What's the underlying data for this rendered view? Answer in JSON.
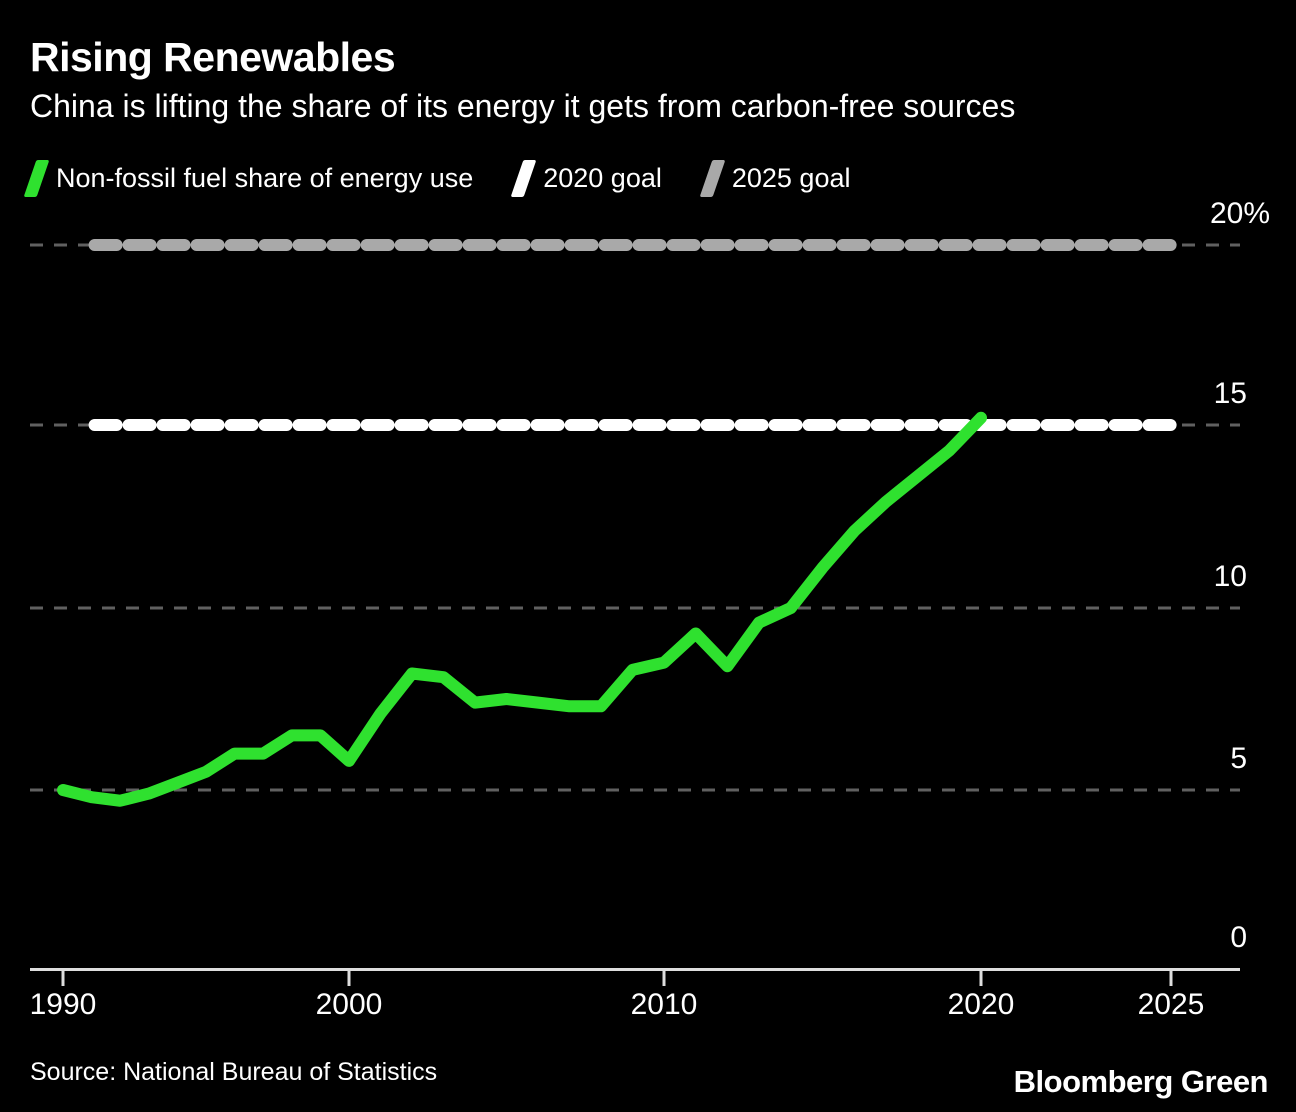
{
  "header": {
    "title": "Rising Renewables",
    "subtitle": "China is lifting the share of its energy it gets from carbon-free sources"
  },
  "legend": [
    {
      "label": "Non-fossil fuel share of energy use",
      "color": "#2fe12f",
      "icon": "slash-icon"
    },
    {
      "label": "2020 goal",
      "color": "#ffffff",
      "icon": "slash-icon"
    },
    {
      "label": "2025 goal",
      "color": "#a9a9a9",
      "icon": "slash-icon"
    }
  ],
  "footer": {
    "source": "Source: National Bureau of Statistics",
    "brand": "Bloomberg Green"
  },
  "chart_data": {
    "type": "line",
    "title": "Rising Renewables",
    "subtitle": "China is lifting the share of its energy it gets from carbon-free sources",
    "xlabel": "",
    "ylabel": "Non-fossil fuel share of energy use (%)",
    "xlim": [
      1989,
      2027
    ],
    "ylim": [
      0,
      21.5
    ],
    "grid": "horizontal-dashed",
    "legend_position": "top",
    "series": [
      {
        "name": "Non-fossil fuel share of energy use",
        "color": "#2fe12f",
        "x": [
          1990,
          1991,
          1992,
          1993,
          1994,
          1995,
          1996,
          1997,
          1998,
          1999,
          2000,
          2001,
          2002,
          2003,
          2004,
          2005,
          2006,
          2007,
          2008,
          2009,
          2010,
          2011,
          2012,
          2013,
          2014,
          2015,
          2016,
          2017,
          2018,
          2019,
          2020
        ],
        "values": [
          5.0,
          4.8,
          4.7,
          4.9,
          5.2,
          5.5,
          6.0,
          6.0,
          6.5,
          6.5,
          5.8,
          7.1,
          8.2,
          8.1,
          7.4,
          7.5,
          7.4,
          7.3,
          7.3,
          8.3,
          8.5,
          9.3,
          8.4,
          9.6,
          10.0,
          11.1,
          12.1,
          12.9,
          13.6,
          14.3,
          15.2
        ]
      }
    ],
    "goal_lines": [
      {
        "name": "2020 goal",
        "value": 15,
        "color": "#ffffff",
        "span_years": [
          1991,
          2025
        ]
      },
      {
        "name": "2025 goal",
        "value": 20,
        "color": "#a9a9a9",
        "span_years": [
          1991,
          2025
        ]
      }
    ],
    "y_ticks": [
      {
        "label": "20%",
        "value": 20
      },
      {
        "label": "15",
        "value": 15
      },
      {
        "label": "10",
        "value": 10
      },
      {
        "label": "5",
        "value": 5
      },
      {
        "label": "0",
        "value": 0
      }
    ],
    "x_ticks": [
      {
        "label": "1990",
        "year": 1990
      },
      {
        "label": "2000",
        "year": 2000
      },
      {
        "label": "2010",
        "year": 2010
      },
      {
        "label": "2020",
        "year": 2020
      },
      {
        "label": "2025",
        "year": 2025
      }
    ]
  }
}
